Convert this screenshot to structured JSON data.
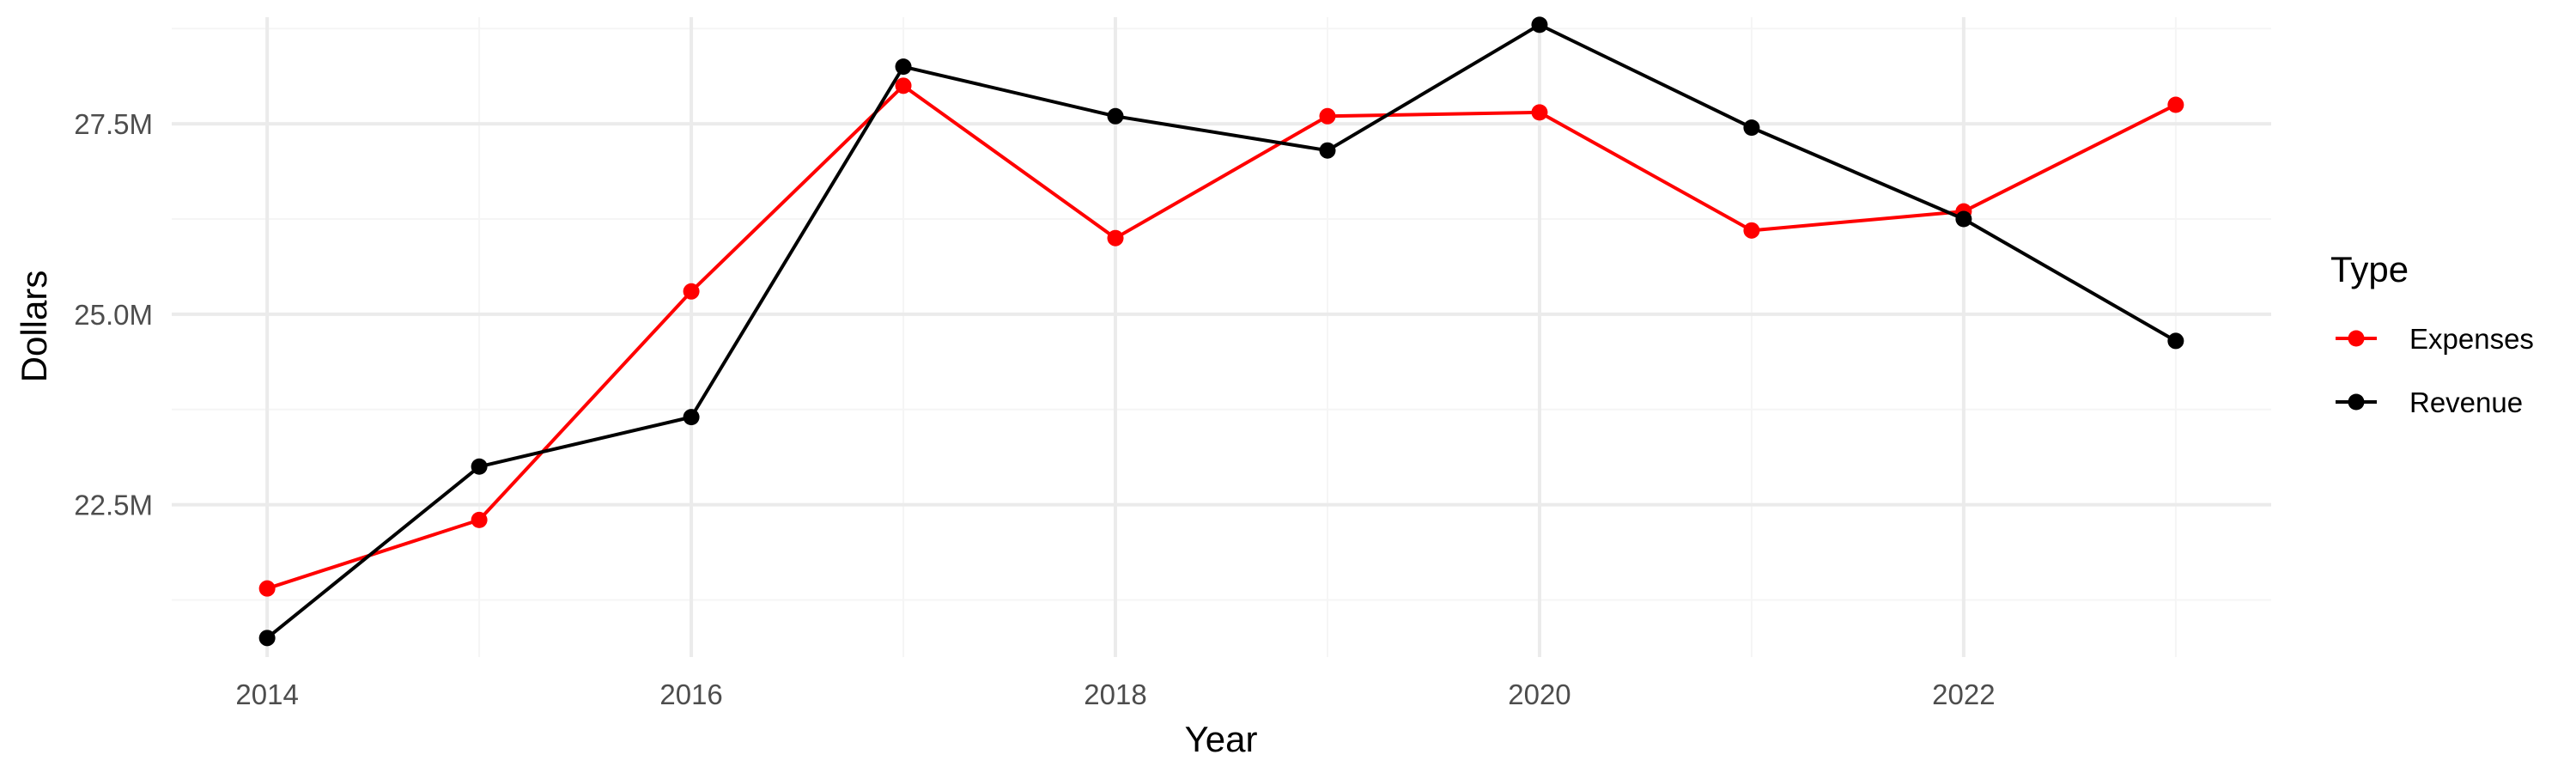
{
  "chart_data": {
    "type": "line",
    "title": "",
    "xlabel": "Year",
    "ylabel": "Dollars",
    "x": [
      2014,
      2015,
      2016,
      2017,
      2018,
      2019,
      2020,
      2021,
      2022,
      2023
    ],
    "x_ticks": [
      2014,
      2016,
      2018,
      2020,
      2022
    ],
    "x_tick_labels": [
      "2014",
      "2016",
      "2018",
      "2020",
      "2022"
    ],
    "xlim": [
      2013.55,
      2023.45
    ],
    "ylim": [
      20.5,
      28.9
    ],
    "y_ticks": [
      22.5,
      25.0,
      27.5
    ],
    "y_tick_labels": [
      "22.5M",
      "25.0M",
      "27.5M"
    ],
    "y_unit": "millions of dollars",
    "grid": true,
    "legend": {
      "title": "Type",
      "position": "right"
    },
    "series": [
      {
        "name": "Expenses",
        "color": "#FF0000",
        "values": [
          21.4,
          22.3,
          25.3,
          28.0,
          26.0,
          27.6,
          27.65,
          26.1,
          26.35,
          27.75
        ]
      },
      {
        "name": "Revenue",
        "color": "#000000",
        "values": [
          20.75,
          23.0,
          23.65,
          28.25,
          27.6,
          27.15,
          28.8,
          27.45,
          26.25,
          24.65
        ]
      }
    ]
  }
}
